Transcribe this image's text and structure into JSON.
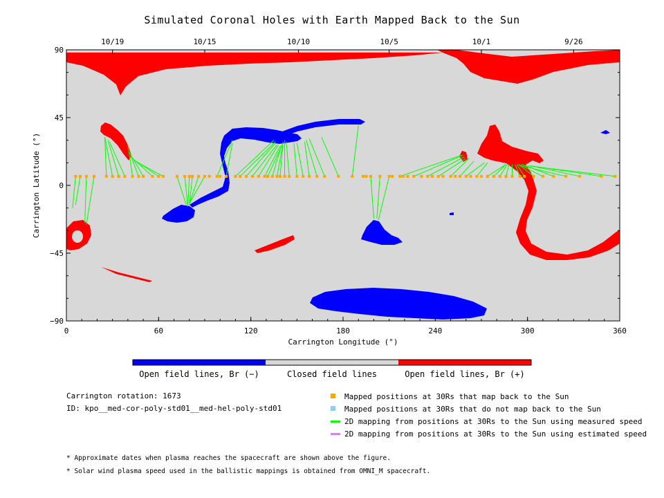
{
  "chart_data": {
    "type": "map",
    "title": "Simulated Coronal Holes with Earth Mapped Back to the Sun",
    "xlabel": "Carrington Longitude (°)",
    "ylabel": "Carrington Latitude (°)",
    "xlim": [
      0,
      360
    ],
    "ylim": [
      -90,
      90
    ],
    "x_ticks": [
      "0",
      "60",
      "120",
      "180",
      "240",
      "300",
      "360"
    ],
    "y_ticks": [
      "90",
      "45",
      "0",
      "−45",
      "−90"
    ],
    "date_axis": [
      {
        "label": "10/19",
        "lon": 30
      },
      {
        "label": "10/15",
        "lon": 90
      },
      {
        "label": "10/10",
        "lon": 151
      },
      {
        "label": "10/5",
        "lon": 210
      },
      {
        "label": "10/1",
        "lon": 270
      },
      {
        "label": "9/26",
        "lon": 330
      }
    ],
    "background_color": "#d8d8d8",
    "colorbar": [
      {
        "label": "Open field lines, Br (−)",
        "color": "#0000ff"
      },
      {
        "label": "Closed field lines",
        "color": "#d8d8d8"
      },
      {
        "label": "Open field lines, Br (+)",
        "color": "#ff0000"
      }
    ],
    "mapped_latitude": 6,
    "mapped_longitudes": [
      6,
      9,
      13,
      18,
      26,
      30,
      34,
      38,
      43,
      47,
      50,
      56,
      60,
      63,
      72,
      77,
      80,
      82,
      86,
      90,
      93,
      98,
      100,
      104,
      110,
      113,
      117,
      121,
      125,
      129,
      131,
      134,
      137,
      139,
      142,
      145,
      150,
      154,
      158,
      163,
      168,
      177,
      186,
      193,
      195,
      198,
      204,
      210,
      212,
      217,
      219,
      222,
      226,
      231,
      235,
      238,
      242,
      245,
      250,
      253,
      256,
      260,
      263,
      267,
      270,
      274,
      278,
      282,
      286,
      290,
      295,
      298,
      304,
      310,
      317,
      325,
      334,
      348,
      357
    ],
    "mapping_lines": [
      [
        6,
        6,
        4,
        -15
      ],
      [
        9,
        6,
        6,
        -13
      ],
      [
        13,
        6,
        12,
        -25
      ],
      [
        18,
        6,
        13,
        -26
      ],
      [
        26,
        6,
        25,
        32
      ],
      [
        30,
        6,
        25,
        32
      ],
      [
        34,
        6,
        27,
        30
      ],
      [
        38,
        6,
        28,
        29
      ],
      [
        43,
        6,
        40,
        27
      ],
      [
        47,
        6,
        41,
        22
      ],
      [
        50,
        6,
        42,
        20
      ],
      [
        56,
        6,
        43,
        18
      ],
      [
        60,
        6,
        44,
        17
      ],
      [
        63,
        6,
        45,
        16
      ],
      [
        72,
        6,
        78,
        -13
      ],
      [
        77,
        6,
        79,
        -14
      ],
      [
        80,
        6,
        79,
        -14
      ],
      [
        82,
        6,
        80,
        -13
      ],
      [
        86,
        6,
        80,
        -12
      ],
      [
        90,
        6,
        80,
        -12
      ],
      [
        98,
        6,
        108,
        30
      ],
      [
        104,
        6,
        108,
        28
      ],
      [
        110,
        6,
        135,
        30
      ],
      [
        113,
        6,
        136,
        29
      ],
      [
        117,
        6,
        136,
        28
      ],
      [
        121,
        6,
        137,
        27
      ],
      [
        125,
        6,
        138,
        27
      ],
      [
        129,
        6,
        139,
        26
      ],
      [
        131,
        6,
        140,
        26
      ],
      [
        134,
        6,
        140,
        27
      ],
      [
        137,
        6,
        141,
        28
      ],
      [
        139,
        6,
        141,
        29
      ],
      [
        142,
        6,
        142,
        30
      ],
      [
        145,
        6,
        143,
        29
      ],
      [
        150,
        6,
        148,
        28
      ],
      [
        154,
        6,
        150,
        28
      ],
      [
        158,
        6,
        155,
        29
      ],
      [
        163,
        6,
        156,
        30
      ],
      [
        168,
        6,
        158,
        31
      ],
      [
        177,
        6,
        166,
        32
      ],
      [
        186,
        6,
        190,
        40
      ],
      [
        198,
        6,
        200,
        -22
      ],
      [
        204,
        6,
        202,
        -22
      ],
      [
        210,
        6,
        203,
        -23
      ],
      [
        217,
        6,
        257,
        20
      ],
      [
        226,
        6,
        258,
        20
      ],
      [
        235,
        6,
        259,
        19
      ],
      [
        242,
        6,
        260,
        18
      ],
      [
        250,
        6,
        262,
        18
      ],
      [
        256,
        6,
        265,
        16
      ],
      [
        260,
        6,
        272,
        15
      ],
      [
        267,
        6,
        274,
        15
      ],
      [
        274,
        6,
        286,
        14
      ],
      [
        278,
        6,
        286,
        14
      ],
      [
        282,
        6,
        287,
        14
      ],
      [
        286,
        6,
        288,
        14
      ],
      [
        290,
        6,
        290,
        14
      ],
      [
        295,
        6,
        292,
        14
      ],
      [
        298,
        6,
        293,
        14
      ],
      [
        304,
        6,
        294,
        14
      ],
      [
        310,
        6,
        294,
        14
      ],
      [
        317,
        6,
        296,
        14
      ],
      [
        325,
        6,
        296,
        13
      ],
      [
        334,
        6,
        302,
        13
      ],
      [
        348,
        6,
        302,
        13
      ],
      [
        357,
        6,
        300,
        13
      ]
    ],
    "carrington_rotation": "Carrington rotation: 1673",
    "model_id": "ID: kpo__med-cor-poly-std01__med-hel-poly-std01"
  },
  "legend": [
    {
      "label": "Mapped positions at 30Rs that map back to the Sun",
      "color": "#ffa500",
      "kind": "square"
    },
    {
      "label": "Mapped positions at 30Rs that do not map back to the Sun",
      "color": "#87cefa",
      "kind": "square"
    },
    {
      "label": "2D mapping from positions at 30Rs to the Sun using measured speed",
      "color": "#00ff00",
      "kind": "line"
    },
    {
      "label": "2D mapping from positions at 30Rs to the Sun using estimated speed",
      "color": "#cc88ee",
      "kind": "line"
    }
  ],
  "footnotes": [
    "* Approximate dates when plasma reaches the spacecraft are shown above the figure.",
    "* Solar wind plasma speed used in the ballistic mappings is obtained from OMNI_M spacecraft."
  ]
}
